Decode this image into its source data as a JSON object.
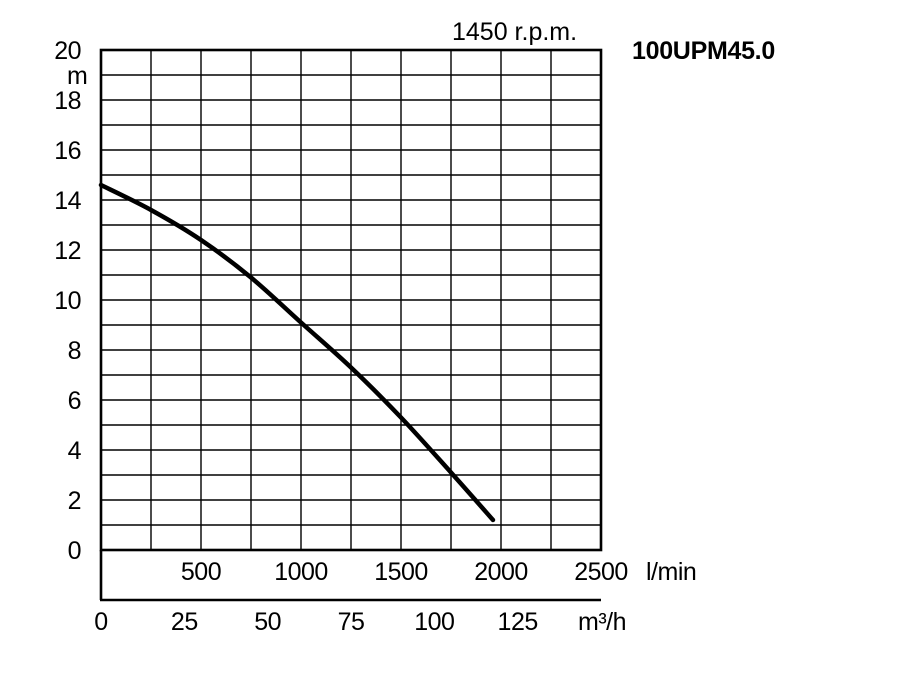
{
  "chart_data": {
    "type": "line",
    "title": "100UPM45.0",
    "subtitle": "1450 r.p.m.",
    "ylabel": "m",
    "ylim": [
      0,
      20
    ],
    "y_ticks": [
      "0",
      "2",
      "4",
      "6",
      "8",
      "10",
      "12",
      "14",
      "16",
      "18",
      "20"
    ],
    "x_axes": [
      {
        "unit": "l/min",
        "ticks": [
          "500",
          "1000",
          "1500",
          "2000",
          "2500"
        ],
        "xlim": [
          0,
          2500
        ]
      },
      {
        "unit": "m³/h",
        "ticks": [
          "0",
          "25",
          "50",
          "75",
          "100",
          "125"
        ],
        "xlim": [
          0,
          150
        ]
      }
    ],
    "grid": true,
    "series": [
      {
        "x": [
          0,
          250,
          500,
          750,
          1000,
          1250,
          1500,
          1750,
          1960
        ],
        "y": [
          14.6,
          13.6,
          12.4,
          10.9,
          9.1,
          7.3,
          5.3,
          3.1,
          1.2
        ]
      }
    ]
  }
}
